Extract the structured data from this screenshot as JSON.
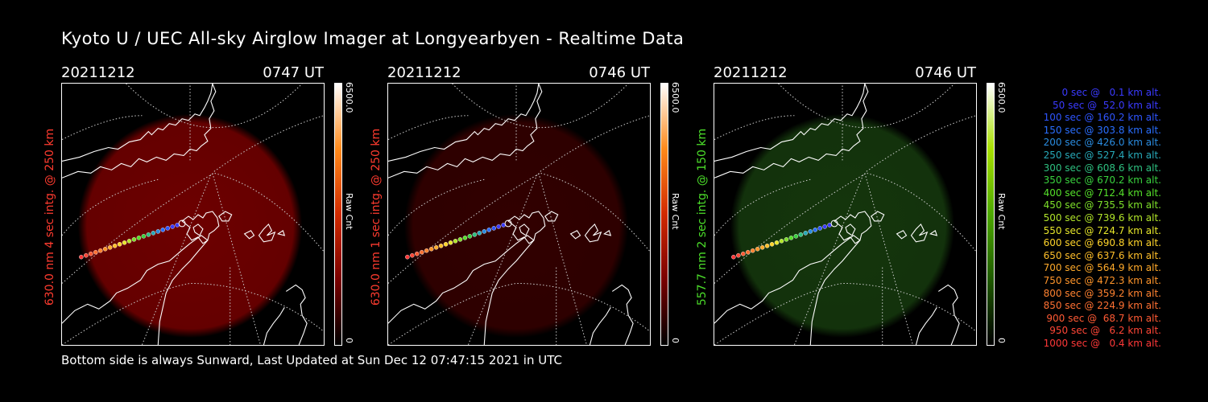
{
  "header": {
    "title": "Kyoto U / UEC All-sky Airglow Imager at Longyearbyen - Realtime Data"
  },
  "panels": [
    {
      "date": "20211212",
      "time": "0747 UT",
      "ylabel": "630.0 nm 4 sec intg. @ 250 km",
      "label_color": "#ff3b2f",
      "glow_color": "#b00000",
      "glow_opacity": 0.62,
      "cbar_max": "6500.0",
      "cbar_unit": "Raw Cnt",
      "cbar_min": "0",
      "cbar_colors": [
        "#000000",
        "#7a0000",
        "#d12a00",
        "#ff8a1a",
        "#ffffff"
      ]
    },
    {
      "date": "20211212",
      "time": "0746 UT",
      "ylabel": "630.0 nm 1 sec intg. @ 250 km",
      "label_color": "#ff3b2f",
      "glow_color": "#5a0000",
      "glow_opacity": 0.55,
      "cbar_max": "6500.0",
      "cbar_unit": "Raw Cnt",
      "cbar_min": "0",
      "cbar_colors": [
        "#000000",
        "#7a0000",
        "#d12a00",
        "#ff8a1a",
        "#ffffff"
      ]
    },
    {
      "date": "20211212",
      "time": "0746 UT",
      "ylabel": "557.7 nm 2 sec intg. @ 150 km",
      "label_color": "#4cdf2a",
      "glow_color": "#1d4d12",
      "glow_opacity": 0.7,
      "cbar_max": "6500.0",
      "cbar_unit": "Raw Cnt",
      "cbar_min": "0",
      "cbar_colors": [
        "#000000",
        "#1f5a00",
        "#4da800",
        "#a8e000",
        "#ffffff"
      ]
    }
  ],
  "legend": [
    {
      "text": "0 sec @   0.1 km alt.",
      "color": "#3a3aff"
    },
    {
      "text": "50 sec @  52.0 km alt.",
      "color": "#3a3aff"
    },
    {
      "text": "100 sec @ 160.2 km alt.",
      "color": "#2e55ff"
    },
    {
      "text": "150 sec @ 303.8 km alt.",
      "color": "#2a6fff"
    },
    {
      "text": "200 sec @ 426.0 km alt.",
      "color": "#2a8ce0"
    },
    {
      "text": "250 sec @ 527.4 km alt.",
      "color": "#27a9b8"
    },
    {
      "text": "300 sec @ 608.6 km alt.",
      "color": "#2ec080"
    },
    {
      "text": "350 sec @ 670.2 km alt.",
      "color": "#39d23e"
    },
    {
      "text": "400 sec @ 712.4 km alt.",
      "color": "#55e02a"
    },
    {
      "text": "450 sec @ 735.5 km alt.",
      "color": "#7ee02a"
    },
    {
      "text": "500 sec @ 739.6 km alt.",
      "color": "#b2e62a"
    },
    {
      "text": "550 sec @ 724.7 km alt.",
      "color": "#e6e62a"
    },
    {
      "text": "600 sec @ 690.8 km alt.",
      "color": "#ffd42a"
    },
    {
      "text": "650 sec @ 637.6 km alt.",
      "color": "#ffbf2a"
    },
    {
      "text": "700 sec @ 564.9 km alt.",
      "color": "#ffaa2a"
    },
    {
      "text": "750 sec @ 472.3 km alt.",
      "color": "#ff952a"
    },
    {
      "text": "800 sec @ 359.2 km alt.",
      "color": "#ff8230"
    },
    {
      "text": "850 sec @ 224.9 km alt.",
      "color": "#ff7032"
    },
    {
      "text": "900 sec @  68.7 km alt.",
      "color": "#ff5a34"
    },
    {
      "text": "950 sec @   6.2 km alt.",
      "color": "#ff4636"
    },
    {
      "text": "1000 sec @   0.4 km alt.",
      "color": "#ff3838"
    }
  ],
  "footer": {
    "text": "Bottom side is always Sunward, Last Updated at Sun Dec 12 07:47:15 2021 in UTC"
  }
}
